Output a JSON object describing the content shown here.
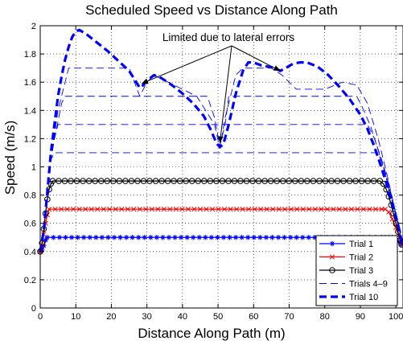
{
  "chart_data": {
    "type": "line",
    "title": "Scheduled Speed vs Distance Along Path",
    "xlabel": "Distance Along Path (m)",
    "ylabel": "Speed (m/s)",
    "xlim": [
      0,
      102
    ],
    "ylim": [
      0,
      2
    ],
    "xticks": [
      0,
      10,
      20,
      30,
      40,
      50,
      60,
      70,
      80,
      90,
      100
    ],
    "yticks": [
      0,
      0.2,
      0.4,
      0.6,
      0.8,
      1,
      1.2,
      1.4,
      1.6,
      1.8,
      2
    ],
    "grid": true,
    "legend_position": "bottom-right",
    "annotation": {
      "text": "Limited due to lateral errors",
      "points_to": [
        [
          28.5,
          1.59
        ],
        [
          50.5,
          1.17
        ],
        [
          67.5,
          1.68
        ]
      ]
    },
    "series": [
      {
        "name": "Trial 1",
        "color": "#0000ff",
        "marker": "asterisk",
        "line_style": "solid",
        "points": [
          [
            0,
            0.4
          ],
          [
            0.5,
            0.41
          ],
          [
            1,
            0.44
          ],
          [
            1.5,
            0.48
          ],
          [
            2,
            0.5
          ],
          [
            96,
            0.5
          ],
          [
            97,
            0.5
          ],
          [
            98,
            0.5
          ],
          [
            99,
            0.5
          ],
          [
            100,
            0.49
          ],
          [
            100.8,
            0.47
          ],
          [
            101.5,
            0.45
          ]
        ]
      },
      {
        "name": "Trial 2",
        "color": "#ff0000",
        "marker": "x",
        "line_style": "solid",
        "points": [
          [
            0,
            0.4
          ],
          [
            0.5,
            0.44
          ],
          [
            1,
            0.52
          ],
          [
            1.5,
            0.6
          ],
          [
            2,
            0.66
          ],
          [
            2.5,
            0.7
          ],
          [
            96,
            0.7
          ],
          [
            97,
            0.7
          ],
          [
            98,
            0.68
          ],
          [
            99,
            0.63
          ],
          [
            100,
            0.57
          ],
          [
            101,
            0.5
          ],
          [
            101.5,
            0.46
          ]
        ]
      },
      {
        "name": "Trial 3",
        "color": "#000000",
        "marker": "circle",
        "line_style": "solid",
        "points": [
          [
            0,
            0.4
          ],
          [
            0.5,
            0.46
          ],
          [
            1,
            0.56
          ],
          [
            1.5,
            0.67
          ],
          [
            2,
            0.77
          ],
          [
            2.5,
            0.84
          ],
          [
            3,
            0.88
          ],
          [
            3.5,
            0.9
          ],
          [
            95.5,
            0.9
          ],
          [
            96.5,
            0.88
          ],
          [
            97.3,
            0.84
          ],
          [
            98,
            0.79
          ],
          [
            98.7,
            0.73
          ],
          [
            99.3,
            0.67
          ],
          [
            100,
            0.6
          ],
          [
            100.6,
            0.54
          ],
          [
            101.2,
            0.48
          ],
          [
            101.6,
            0.45
          ]
        ]
      },
      {
        "name": "Trials 4–9",
        "color": "#0000ff",
        "marker": "none",
        "line_style": "dashed",
        "thin": true,
        "lines": [
          [
            [
              0,
              0.4
            ],
            [
              1,
              0.55
            ],
            [
              2,
              0.8
            ],
            [
              3,
              1.05
            ],
            [
              4,
              1.1
            ],
            [
              95,
              1.1
            ],
            [
              96.5,
              1.0
            ],
            [
              98,
              0.85
            ],
            [
              99.5,
              0.7
            ],
            [
              101,
              0.55
            ],
            [
              101.7,
              0.45
            ]
          ],
          [
            [
              0,
              0.4
            ],
            [
              1,
              0.55
            ],
            [
              2,
              0.8
            ],
            [
              3,
              1.05
            ],
            [
              4,
              1.2
            ],
            [
              5,
              1.3
            ],
            [
              92,
              1.3
            ],
            [
              94,
              1.2
            ],
            [
              96,
              1.05
            ],
            [
              98,
              0.88
            ],
            [
              100,
              0.65
            ],
            [
              101.7,
              0.45
            ]
          ],
          [
            [
              0,
              0.4
            ],
            [
              1,
              0.55
            ],
            [
              2,
              0.8
            ],
            [
              3,
              1.05
            ],
            [
              4,
              1.2
            ],
            [
              5,
              1.32
            ],
            [
              6,
              1.45
            ],
            [
              7,
              1.5
            ],
            [
              47,
              1.5
            ],
            [
              49,
              1.35
            ],
            [
              50.5,
              1.15
            ],
            [
              52,
              1.3
            ],
            [
              53,
              1.5
            ],
            [
              89,
              1.5
            ],
            [
              91,
              1.4
            ],
            [
              93,
              1.28
            ],
            [
              95,
              1.12
            ],
            [
              97,
              0.95
            ],
            [
              99,
              0.78
            ],
            [
              101,
              0.55
            ],
            [
              101.7,
              0.45
            ]
          ],
          [
            [
              0,
              0.4
            ],
            [
              1,
              0.55
            ],
            [
              2,
              0.8
            ],
            [
              3,
              1.05
            ],
            [
              5,
              1.4
            ],
            [
              7,
              1.6
            ],
            [
              8,
              1.7
            ],
            [
              25,
              1.7
            ],
            [
              28,
              1.5
            ],
            [
              30,
              1.6
            ],
            [
              32,
              1.65
            ],
            [
              36,
              1.6
            ],
            [
              44,
              1.5
            ],
            [
              49,
              1.3
            ],
            [
              50.5,
              1.13
            ],
            [
              52,
              1.35
            ],
            [
              55,
              1.65
            ],
            [
              57,
              1.7
            ],
            [
              65,
              1.7
            ],
            [
              68,
              1.65
            ],
            [
              72,
              1.55
            ],
            [
              80,
              1.55
            ],
            [
              85,
              1.6
            ],
            [
              89,
              1.58
            ],
            [
              92,
              1.45
            ],
            [
              95,
              1.2
            ],
            [
              97,
              1.0
            ],
            [
              99,
              0.78
            ],
            [
              101,
              0.55
            ],
            [
              101.7,
              0.45
            ]
          ]
        ]
      },
      {
        "name": "Trial 10",
        "color": "#0000ff",
        "marker": "none",
        "line_style": "dashed",
        "thick": true,
        "points": [
          [
            0,
            0.4
          ],
          [
            1,
            0.55
          ],
          [
            2,
            0.82
          ],
          [
            3,
            1.1
          ],
          [
            4,
            1.3
          ],
          [
            5,
            1.5
          ],
          [
            6,
            1.64
          ],
          [
            7,
            1.76
          ],
          [
            8,
            1.85
          ],
          [
            9,
            1.92
          ],
          [
            10,
            1.96
          ],
          [
            11,
            1.97
          ],
          [
            13,
            1.94
          ],
          [
            16,
            1.88
          ],
          [
            19,
            1.82
          ],
          [
            22,
            1.75
          ],
          [
            25,
            1.68
          ],
          [
            27,
            1.6
          ],
          [
            28,
            1.56
          ],
          [
            29,
            1.58
          ],
          [
            30,
            1.61
          ],
          [
            32,
            1.65
          ],
          [
            34,
            1.63
          ],
          [
            37,
            1.58
          ],
          [
            40,
            1.52
          ],
          [
            43,
            1.45
          ],
          [
            46,
            1.36
          ],
          [
            48,
            1.26
          ],
          [
            49.5,
            1.17
          ],
          [
            50.5,
            1.14
          ],
          [
            51.5,
            1.16
          ],
          [
            53,
            1.3
          ],
          [
            55,
            1.52
          ],
          [
            57,
            1.68
          ],
          [
            58.5,
            1.74
          ],
          [
            60,
            1.74
          ],
          [
            62,
            1.72
          ],
          [
            64,
            1.71
          ],
          [
            66,
            1.7
          ],
          [
            67.5,
            1.68
          ],
          [
            69,
            1.7
          ],
          [
            71,
            1.73
          ],
          [
            73,
            1.74
          ],
          [
            75,
            1.74
          ],
          [
            78,
            1.71
          ],
          [
            81,
            1.65
          ],
          [
            84,
            1.57
          ],
          [
            87,
            1.48
          ],
          [
            90,
            1.37
          ],
          [
            92,
            1.27
          ],
          [
            94,
            1.14
          ],
          [
            96,
            0.99
          ],
          [
            98,
            0.83
          ],
          [
            100,
            0.65
          ],
          [
            101,
            0.55
          ],
          [
            101.7,
            0.46
          ]
        ]
      }
    ]
  }
}
